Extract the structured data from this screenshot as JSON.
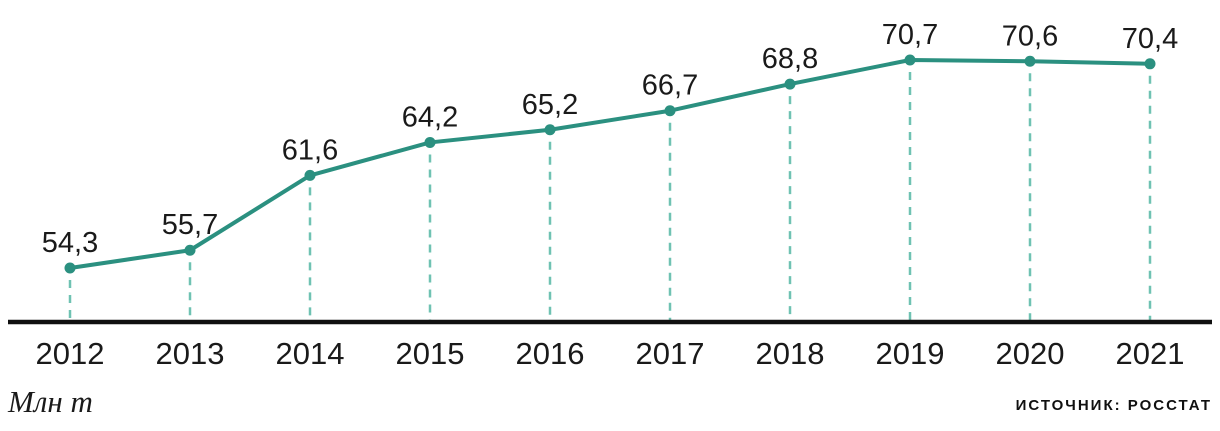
{
  "chart_data": {
    "type": "line",
    "title": "",
    "x": [
      "2012",
      "2013",
      "2014",
      "2015",
      "2016",
      "2017",
      "2018",
      "2019",
      "2020",
      "2021"
    ],
    "series": [
      {
        "name": "",
        "values": [
          54.3,
          55.7,
          61.6,
          64.2,
          65.2,
          66.7,
          68.8,
          70.7,
          70.6,
          70.4
        ]
      }
    ],
    "value_labels": [
      "54,3",
      "55,7",
      "61,6",
      "64,2",
      "65,2",
      "66,7",
      "68,8",
      "70,7",
      "70,6",
      "70,4"
    ],
    "xlabel": "",
    "ylabel": "Млн т",
    "source": "ИСТОЧНИК: РОССТАТ",
    "grid": false,
    "legend": "none",
    "y_axis_visible": false,
    "value_range_shown": [
      54.3,
      70.7
    ],
    "colors": {
      "line": "#2b9080",
      "marker": "#2b9080",
      "guide_dash": "#6fc2b2",
      "axis": "#101010",
      "label_text": "#1a1a1a"
    }
  },
  "footer": {
    "unit_label": "Млн т",
    "source_label": "ИСТОЧНИК: РОССТАТ"
  }
}
